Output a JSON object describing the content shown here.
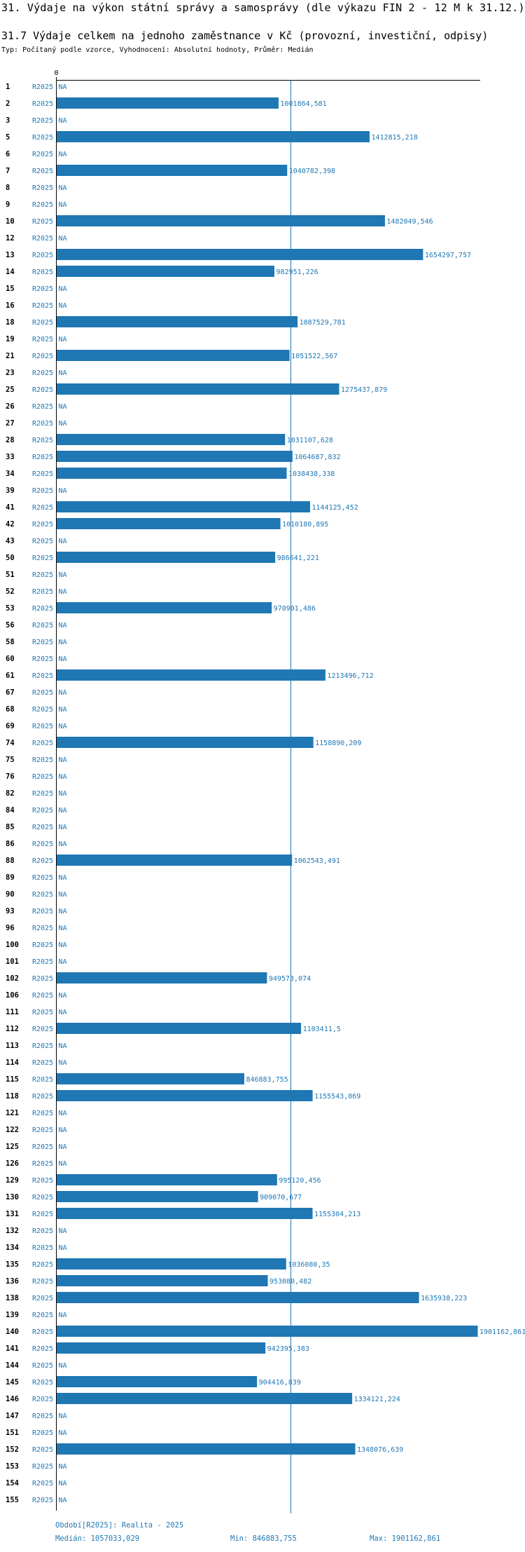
{
  "header": {
    "section_title": "31. Výdaje na výkon státní správy a samosprávy (dle výkazu FIN 2 - 12 M k 31.12.)",
    "chart_title": "31.7 Výdaje celkem na jednoho zaměstnance v Kč (provozní, investiční, odpisy)",
    "subtitle": "Typ: Počítaný podle vzorce, Vyhodnocení: Absolutní hodnoty, Průměr: Medián"
  },
  "colors": {
    "bar": "#1f77b4",
    "label": "#1f77b4",
    "axis": "#000000"
  },
  "chart_data": {
    "type": "bar",
    "orientation": "horizontal",
    "title": "31.7 Výdaje celkem na jednoho zaměstnance v Kč (provozní, investiční, odpisy)",
    "axis_zero_label": "0",
    "series_label": "R2025",
    "na_label": "NA",
    "xlim": [
      0,
      1901162.861
    ],
    "median": 1057033.029,
    "rows": [
      {
        "id": "1",
        "value": null,
        "label": "NA"
      },
      {
        "id": "2",
        "value": 1001864.581,
        "label": "1001864,581"
      },
      {
        "id": "3",
        "value": null,
        "label": "NA"
      },
      {
        "id": "5",
        "value": 1412815.218,
        "label": "1412815,218"
      },
      {
        "id": "6",
        "value": null,
        "label": "NA"
      },
      {
        "id": "7",
        "value": 1040782.398,
        "label": "1040782,398"
      },
      {
        "id": "8",
        "value": null,
        "label": "NA"
      },
      {
        "id": "9",
        "value": null,
        "label": "NA"
      },
      {
        "id": "10",
        "value": 1482049.546,
        "label": "1482049,546"
      },
      {
        "id": "12",
        "value": null,
        "label": "NA"
      },
      {
        "id": "13",
        "value": 1654297.757,
        "label": "1654297,757"
      },
      {
        "id": "14",
        "value": 982951.226,
        "label": "982951,226"
      },
      {
        "id": "15",
        "value": null,
        "label": "NA"
      },
      {
        "id": "16",
        "value": null,
        "label": "NA"
      },
      {
        "id": "18",
        "value": 1087529.781,
        "label": "1087529,781"
      },
      {
        "id": "19",
        "value": null,
        "label": "NA"
      },
      {
        "id": "21",
        "value": 1051522.567,
        "label": "1051522,567"
      },
      {
        "id": "23",
        "value": null,
        "label": "NA"
      },
      {
        "id": "25",
        "value": 1275437.879,
        "label": "1275437,879"
      },
      {
        "id": "26",
        "value": null,
        "label": "NA"
      },
      {
        "id": "27",
        "value": null,
        "label": "NA"
      },
      {
        "id": "28",
        "value": 1031107.628,
        "label": "1031107,628"
      },
      {
        "id": "33",
        "value": 1064687.832,
        "label": "1064687,832"
      },
      {
        "id": "34",
        "value": 1038438.338,
        "label": "1038438,338"
      },
      {
        "id": "39",
        "value": null,
        "label": "NA"
      },
      {
        "id": "41",
        "value": 1144125.452,
        "label": "1144125,452"
      },
      {
        "id": "42",
        "value": 1010180.895,
        "label": "1010180,895"
      },
      {
        "id": "43",
        "value": null,
        "label": "NA"
      },
      {
        "id": "50",
        "value": 986641.221,
        "label": "986641,221"
      },
      {
        "id": "51",
        "value": null,
        "label": "NA"
      },
      {
        "id": "52",
        "value": null,
        "label": "NA"
      },
      {
        "id": "53",
        "value": 970901.486,
        "label": "970901,486"
      },
      {
        "id": "56",
        "value": null,
        "label": "NA"
      },
      {
        "id": "58",
        "value": null,
        "label": "NA"
      },
      {
        "id": "60",
        "value": null,
        "label": "NA"
      },
      {
        "id": "61",
        "value": 1213496.712,
        "label": "1213496,712"
      },
      {
        "id": "67",
        "value": null,
        "label": "NA"
      },
      {
        "id": "68",
        "value": null,
        "label": "NA"
      },
      {
        "id": "69",
        "value": null,
        "label": "NA"
      },
      {
        "id": "74",
        "value": 1158890.209,
        "label": "1158890,209"
      },
      {
        "id": "75",
        "value": null,
        "label": "NA"
      },
      {
        "id": "76",
        "value": null,
        "label": "NA"
      },
      {
        "id": "82",
        "value": null,
        "label": "NA"
      },
      {
        "id": "84",
        "value": null,
        "label": "NA"
      },
      {
        "id": "85",
        "value": null,
        "label": "NA"
      },
      {
        "id": "86",
        "value": null,
        "label": "NA"
      },
      {
        "id": "88",
        "value": 1062543.491,
        "label": "1062543,491"
      },
      {
        "id": "89",
        "value": null,
        "label": "NA"
      },
      {
        "id": "90",
        "value": null,
        "label": "NA"
      },
      {
        "id": "93",
        "value": null,
        "label": "NA"
      },
      {
        "id": "96",
        "value": null,
        "label": "NA"
      },
      {
        "id": "100",
        "value": null,
        "label": "NA"
      },
      {
        "id": "101",
        "value": null,
        "label": "NA"
      },
      {
        "id": "102",
        "value": 949573.074,
        "label": "949573,074"
      },
      {
        "id": "106",
        "value": null,
        "label": "NA"
      },
      {
        "id": "111",
        "value": null,
        "label": "NA"
      },
      {
        "id": "112",
        "value": 1103411.5,
        "label": "1103411,5"
      },
      {
        "id": "113",
        "value": null,
        "label": "NA"
      },
      {
        "id": "114",
        "value": null,
        "label": "NA"
      },
      {
        "id": "115",
        "value": 846883.755,
        "label": "846883,755"
      },
      {
        "id": "118",
        "value": 1155543.069,
        "label": "1155543,069"
      },
      {
        "id": "121",
        "value": null,
        "label": "NA"
      },
      {
        "id": "122",
        "value": null,
        "label": "NA"
      },
      {
        "id": "125",
        "value": null,
        "label": "NA"
      },
      {
        "id": "126",
        "value": null,
        "label": "NA"
      },
      {
        "id": "129",
        "value": 995120.456,
        "label": "995120,456"
      },
      {
        "id": "130",
        "value": 909070.677,
        "label": "909070,677"
      },
      {
        "id": "131",
        "value": 1155304.213,
        "label": "1155304,213"
      },
      {
        "id": "132",
        "value": null,
        "label": "NA"
      },
      {
        "id": "134",
        "value": null,
        "label": "NA"
      },
      {
        "id": "135",
        "value": 1036080.35,
        "label": "1036080,35"
      },
      {
        "id": "136",
        "value": 953080.482,
        "label": "953080,482"
      },
      {
        "id": "138",
        "value": 1635938.223,
        "label": "1635938,223"
      },
      {
        "id": "139",
        "value": null,
        "label": "NA"
      },
      {
        "id": "140",
        "value": 1901162.861,
        "label": "1901162,861"
      },
      {
        "id": "141",
        "value": 942395.383,
        "label": "942395,383"
      },
      {
        "id": "144",
        "value": null,
        "label": "NA"
      },
      {
        "id": "145",
        "value": 904416.839,
        "label": "904416,839"
      },
      {
        "id": "146",
        "value": 1334121.224,
        "label": "1334121,224"
      },
      {
        "id": "147",
        "value": null,
        "label": "NA"
      },
      {
        "id": "151",
        "value": null,
        "label": "NA"
      },
      {
        "id": "152",
        "value": 1348076.639,
        "label": "1348076,639"
      },
      {
        "id": "153",
        "value": null,
        "label": "NA"
      },
      {
        "id": "154",
        "value": null,
        "label": "NA"
      },
      {
        "id": "155",
        "value": null,
        "label": "NA"
      }
    ]
  },
  "footer": {
    "period": "Období[R2025]: Realita - 2025",
    "median": "Medián: 1057033,029",
    "min": "Min: 846883,755",
    "max": "Max: 1901162,861"
  }
}
